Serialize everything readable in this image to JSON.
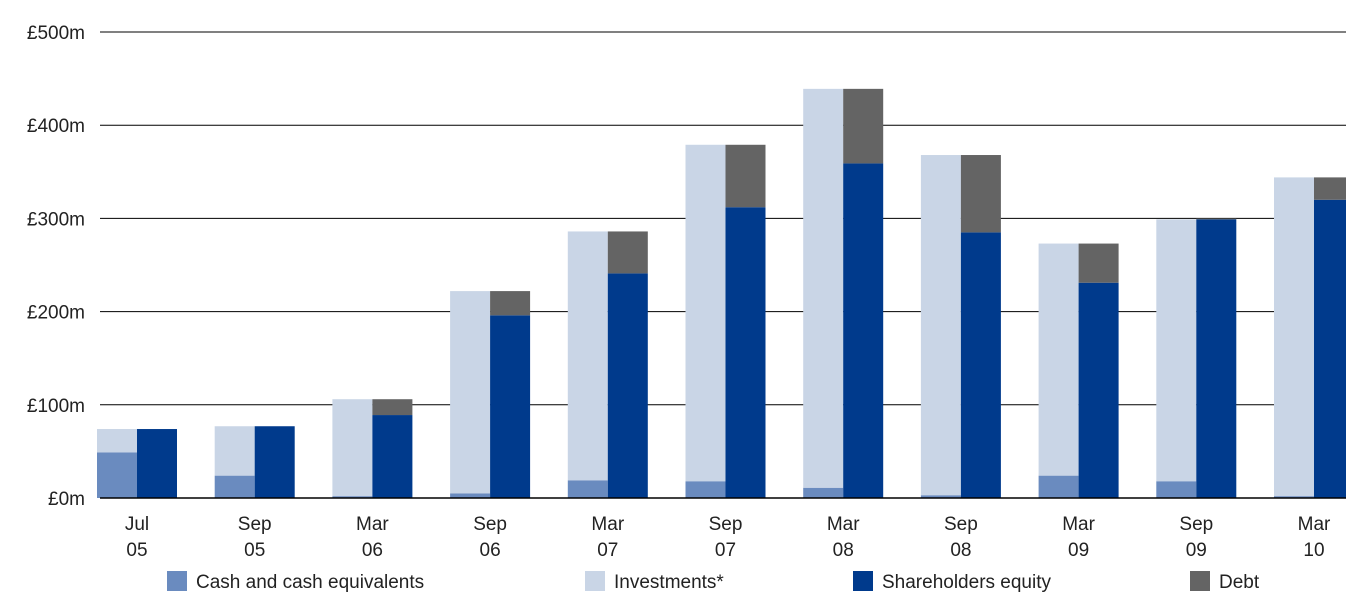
{
  "chart_data": {
    "type": "bar",
    "categories": [
      "Jul 05",
      "Sep 05",
      "Mar 06",
      "Sep 06",
      "Mar 07",
      "Sep 07",
      "Mar 08",
      "Sep 08",
      "Mar 09",
      "Sep 09",
      "Mar 10"
    ],
    "series": [
      {
        "name": "Cash and cash equivalents",
        "color": "#6a8bbf",
        "values": [
          49,
          24,
          2,
          5,
          19,
          18,
          11,
          3,
          24,
          18,
          2
        ]
      },
      {
        "name": "Investments*",
        "color": "#c9d5e6",
        "values": [
          25,
          53,
          104,
          217,
          267,
          361,
          428,
          365,
          249,
          281,
          342
        ]
      },
      {
        "name": "Shareholders equity",
        "color": "#003a8c",
        "values": [
          74,
          77,
          89,
          196,
          241,
          312,
          359,
          285,
          231,
          299,
          320
        ]
      },
      {
        "name": "Debt",
        "color": "#646464",
        "values": [
          0,
          0,
          17,
          26,
          45,
          67,
          80,
          83,
          42,
          1,
          24
        ]
      }
    ],
    "ylim": [
      0,
      500
    ],
    "yticks": [
      {
        "value": 0,
        "label": "£0m"
      },
      {
        "value": 100,
        "label": "£100m"
      },
      {
        "value": 200,
        "label": "£200m"
      },
      {
        "value": 300,
        "label": "£300m"
      },
      {
        "value": 400,
        "label": "£400m"
      },
      {
        "value": 500,
        "label": "£500m"
      }
    ],
    "grid": true,
    "legend": "bottom"
  }
}
